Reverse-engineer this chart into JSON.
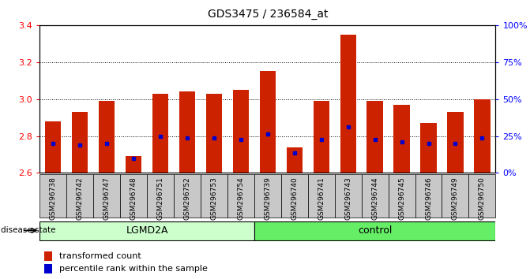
{
  "title": "GDS3475 / 236584_at",
  "samples": [
    "GSM296738",
    "GSM296742",
    "GSM296747",
    "GSM296748",
    "GSM296751",
    "GSM296752",
    "GSM296753",
    "GSM296754",
    "GSM296739",
    "GSM296740",
    "GSM296741",
    "GSM296743",
    "GSM296744",
    "GSM296745",
    "GSM296746",
    "GSM296749",
    "GSM296750"
  ],
  "transformed_count": [
    2.88,
    2.93,
    2.99,
    2.69,
    3.03,
    3.04,
    3.03,
    3.05,
    3.15,
    2.74,
    2.99,
    3.35,
    2.99,
    2.97,
    2.87,
    2.93,
    3.0
  ],
  "percentile_rank": [
    2.76,
    2.75,
    2.76,
    2.68,
    2.8,
    2.79,
    2.79,
    2.78,
    2.81,
    2.71,
    2.78,
    2.85,
    2.78,
    2.77,
    2.76,
    2.76,
    2.79
  ],
  "y_min": 2.6,
  "y_max": 3.4,
  "y_ticks_left": [
    2.6,
    2.8,
    3.0,
    3.2,
    3.4
  ],
  "y_ticks_right": [
    0,
    25,
    50,
    75,
    100
  ],
  "y_ticks_right_labels": [
    "0%",
    "25%",
    "50%",
    "75%",
    "100%"
  ],
  "groups": [
    {
      "label": "LGMD2A",
      "start": 0,
      "end": 8,
      "color": "#ccffcc"
    },
    {
      "label": "control",
      "start": 8,
      "end": 17,
      "color": "#66ee66"
    }
  ],
  "disease_state_label": "disease state",
  "bar_color": "#cc2200",
  "percentile_color": "#0000cc",
  "tick_bg_color": "#c8c8c8",
  "plot_bg_color": "#ffffff",
  "legend_items": [
    {
      "label": "transformed count",
      "color": "#cc2200"
    },
    {
      "label": "percentile rank within the sample",
      "color": "#0000cc"
    }
  ]
}
